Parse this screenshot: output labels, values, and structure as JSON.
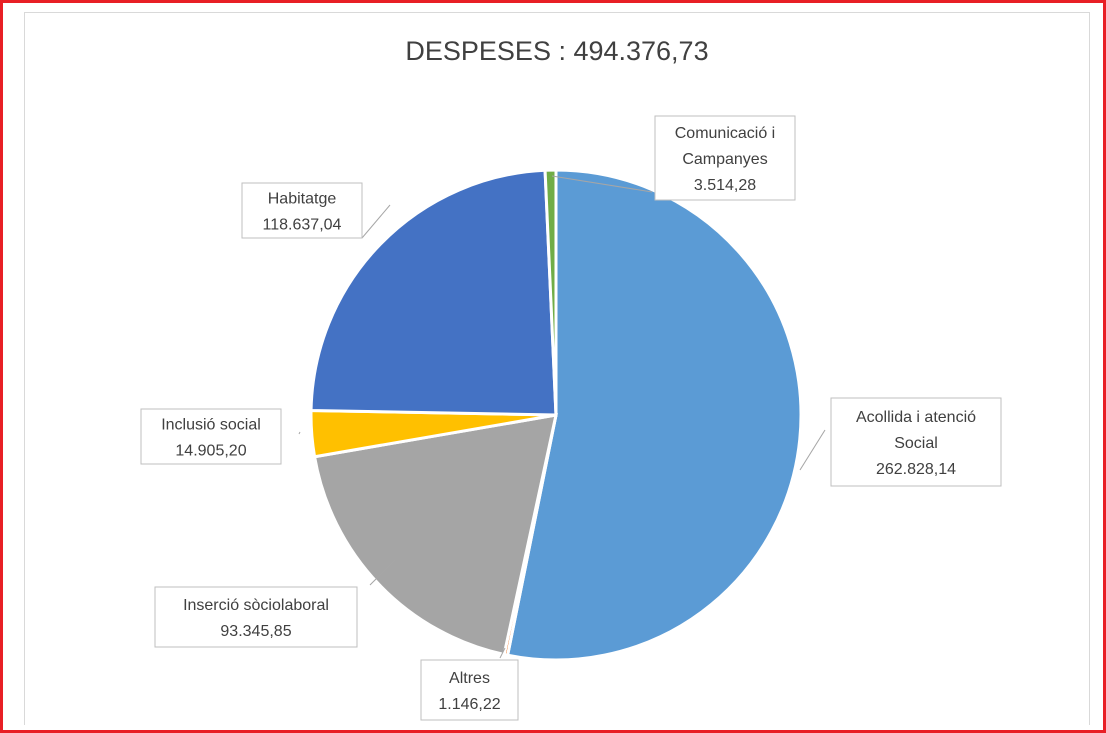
{
  "chart_data": {
    "type": "pie",
    "title": "DESPESES : 494.376,73",
    "slices": [
      {
        "name": "Acollida i atenció Social",
        "label_lines": [
          "Acollida i atenció",
          "Social",
          "262.828,14"
        ],
        "value": 262828.14,
        "color": "#5b9bd5"
      },
      {
        "name": "Altres",
        "label_lines": [
          "Altres",
          "1.146,22"
        ],
        "value": 1146.22,
        "color": "#ed7d31"
      },
      {
        "name": "Inserció sòciolaboral",
        "label_lines": [
          "Inserció sòciolaboral",
          "93.345,85"
        ],
        "value": 93345.85,
        "color": "#a5a5a5"
      },
      {
        "name": "Inclusió social",
        "label_lines": [
          "Inclusió social",
          "14.905,20"
        ],
        "value": 14905.2,
        "color": "#ffc000"
      },
      {
        "name": "Habitatge",
        "label_lines": [
          "Habitatge",
          "118.637,04"
        ],
        "value": 118637.04,
        "color": "#4472c4"
      },
      {
        "name": "Comunicació i Campanyes",
        "label_lines": [
          "Comunicació i",
          "Campanyes",
          "3.514,28"
        ],
        "value": 3514.28,
        "color": "#70ad47"
      }
    ],
    "legend": "none",
    "start_angle_deg": 0,
    "direction": "clockwise"
  }
}
